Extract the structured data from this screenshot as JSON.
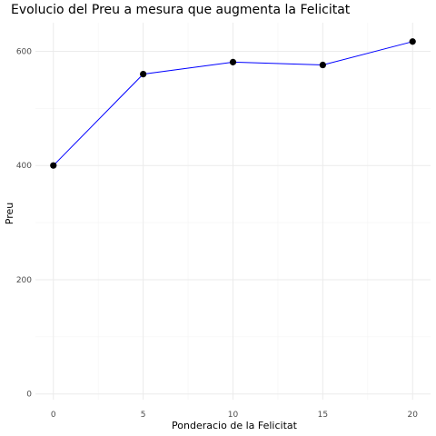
{
  "chart_data": {
    "type": "line",
    "title": "Evolucio del Preu a mesura que augmenta la Felicitat",
    "xlabel": "Ponderacio de la Felicitat",
    "ylabel": "Preu",
    "x": [
      0,
      5,
      10,
      15,
      20
    ],
    "series": [
      {
        "values": [
          400,
          560,
          581,
          576,
          617
        ]
      }
    ],
    "xlim": [
      -1,
      21
    ],
    "ylim": [
      -10,
      650
    ],
    "xticks": [
      0,
      5,
      10,
      15,
      20
    ],
    "yticks": [
      0,
      200,
      400,
      600
    ],
    "grid": true,
    "legend": "none",
    "colors": {
      "line": "#0000ff",
      "point": "#000000",
      "grid_major": "#ebebeb",
      "grid_minor": "#f4f4f4"
    }
  }
}
